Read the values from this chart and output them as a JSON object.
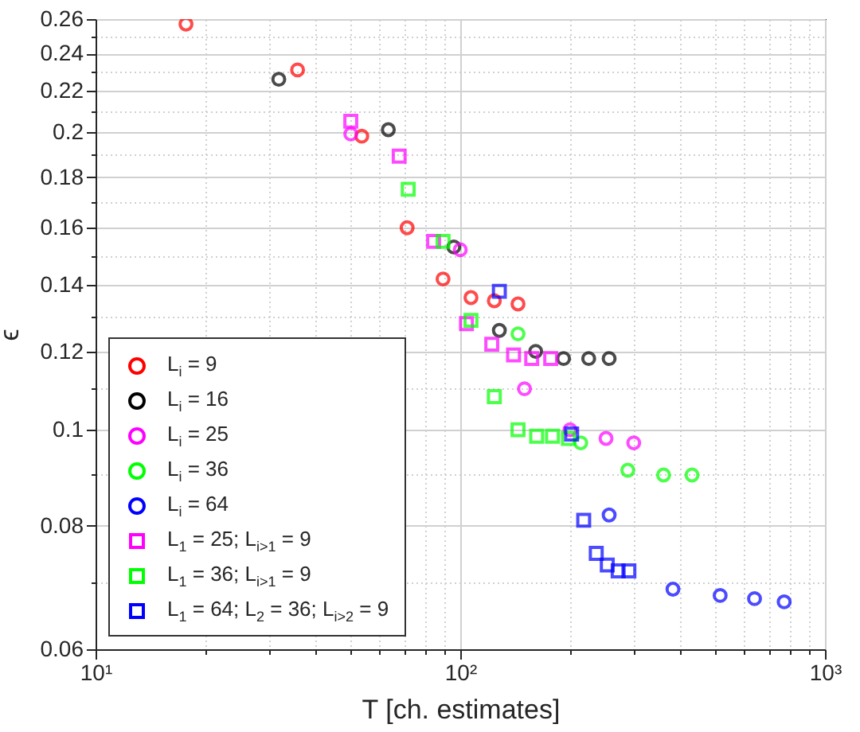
{
  "chart_data": {
    "type": "scatter",
    "xlabel": "T [ch. estimates]",
    "ylabel": "ϵ",
    "log": "xy",
    "xlim": [
      10,
      1000
    ],
    "ylim": [
      0.06,
      0.26
    ],
    "xticks": [
      {
        "value": 10,
        "label": "10¹"
      },
      {
        "value": 20,
        "label": null
      },
      {
        "value": 30,
        "label": null
      },
      {
        "value": 40,
        "label": null
      },
      {
        "value": 50,
        "label": null
      },
      {
        "value": 60,
        "label": null
      },
      {
        "value": 70,
        "label": null
      },
      {
        "value": 80,
        "label": null
      },
      {
        "value": 90,
        "label": null
      },
      {
        "value": 100,
        "label": "10²"
      },
      {
        "value": 200,
        "label": null
      },
      {
        "value": 300,
        "label": null
      },
      {
        "value": 400,
        "label": null
      },
      {
        "value": 500,
        "label": null
      },
      {
        "value": 600,
        "label": null
      },
      {
        "value": 700,
        "label": null
      },
      {
        "value": 800,
        "label": null
      },
      {
        "value": 900,
        "label": null
      },
      {
        "value": 1000,
        "label": "10³"
      }
    ],
    "yticks": [
      0.06,
      {
        "value": 0.07,
        "label": null
      },
      0.08,
      {
        "value": 0.09,
        "label": null
      },
      0.1,
      {
        "value": 0.11,
        "label": null
      },
      0.12,
      {
        "value": 0.13,
        "label": null
      },
      0.14,
      {
        "value": 0.15,
        "label": null
      },
      0.16,
      {
        "value": 0.17,
        "label": null
      },
      0.18,
      {
        "value": 0.19,
        "label": null
      },
      0.2,
      {
        "value": 0.21,
        "label": null
      },
      0.22,
      {
        "value": 0.23,
        "label": null
      },
      0.24,
      {
        "value": 0.25,
        "label": null
      },
      0.26
    ],
    "grid": true,
    "legend": "bottom left",
    "series": [
      {
        "name": "L$_{i}$ = 9",
        "color": "#ff0000",
        "marker": "circle",
        "x": [
          17.7,
          35.8,
          53.7,
          71.5,
          89.7,
          107,
          124,
          144
        ],
        "values": [
          0.257,
          0.231,
          0.198,
          0.16,
          0.142,
          0.136,
          0.135,
          0.134
        ]
      },
      {
        "name": "L$_{i}$ = 16",
        "color": "#000000",
        "marker": "circle",
        "x": [
          31.8,
          63.5,
          96,
          128,
          161,
          192,
          225,
          256
        ],
        "values": [
          0.226,
          0.201,
          0.153,
          0.126,
          0.12,
          0.118,
          0.118,
          0.118
        ]
      },
      {
        "name": "L$_{i}$ = 25",
        "color": "#ff00ff",
        "marker": "circle",
        "x": [
          50.1,
          100,
          150,
          200,
          251,
          299
        ],
        "values": [
          0.199,
          0.152,
          0.11,
          0.1,
          0.098,
          0.097
        ]
      },
      {
        "name": "L$_{i}$ = 36",
        "color": "#00ff00",
        "marker": "circle",
        "x": [
          144,
          214,
          288,
          361,
          432
        ],
        "values": [
          0.125,
          0.097,
          0.091,
          0.09,
          0.09
        ]
      },
      {
        "name": "L$_{i}$ = 64",
        "color": "#0000ff",
        "marker": "circle",
        "x": [
          256,
          383,
          516,
          641,
          773
        ],
        "values": [
          0.082,
          0.069,
          0.068,
          0.0675,
          0.067
        ]
      },
      {
        "name": "L$_{1}$ = 25; L$_{i>1}$ = 9",
        "color": "#ff00ff",
        "marker": "square",
        "x": [
          50.1,
          68,
          84.5,
          104,
          122,
          140,
          157,
          177
        ],
        "values": [
          0.205,
          0.189,
          0.155,
          0.128,
          0.122,
          0.119,
          0.118,
          0.118
        ]
      },
      {
        "name": "L$_{1}$ = 36; L$_{i>1}$ = 9",
        "color": "#00ff00",
        "marker": "square",
        "x": [
          72,
          89.7,
          107,
          124,
          144,
          162,
          179,
          198
        ],
        "values": [
          0.175,
          0.155,
          0.129,
          0.108,
          0.1,
          0.0985,
          0.0985,
          0.098
        ]
      },
      {
        "name": "L$_{1}$ = 64; L$_{2}$ = 36; L$_{i>2}$ = 9",
        "color": "#0000ff",
        "marker": "square",
        "x": [
          128,
          202,
          218,
          236,
          253,
          271,
          290
        ],
        "values": [
          0.138,
          0.099,
          0.081,
          0.075,
          0.073,
          0.072,
          0.072
        ]
      }
    ]
  }
}
